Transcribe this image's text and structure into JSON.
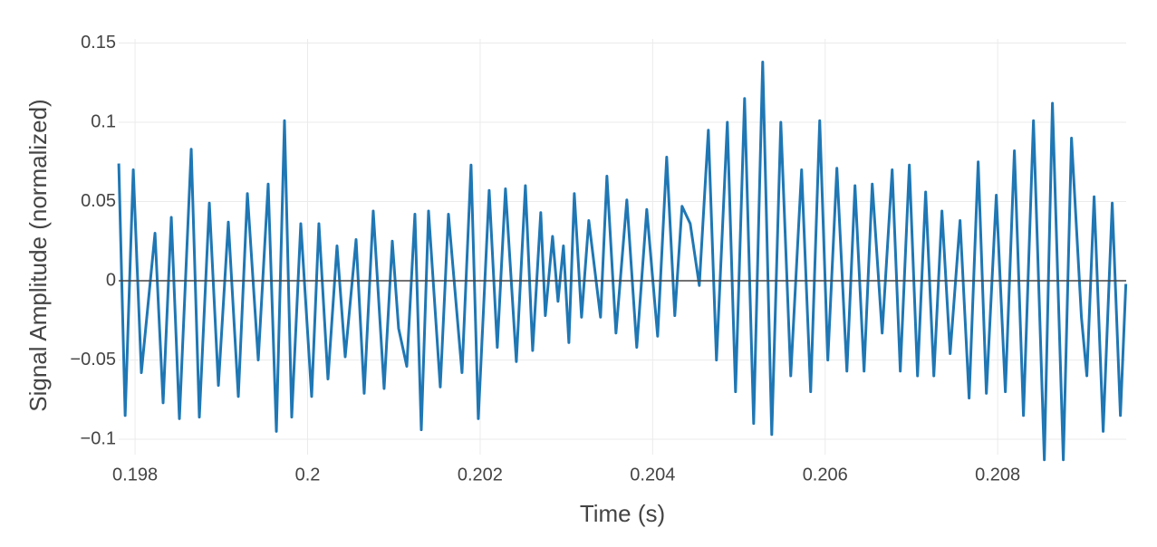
{
  "chart_data": {
    "type": "line",
    "x_label": "Time (s)",
    "y_label": "Signal Amplitude (normalized)",
    "xlim": [
      0.19781,
      0.20949
    ],
    "ylim": [
      -0.1097,
      0.1526
    ],
    "xticks": [
      0.198,
      0.2,
      0.202,
      0.204,
      0.206,
      0.208
    ],
    "yticks": [
      {
        "value": -0.1,
        "label": "−0.1"
      },
      {
        "value": -0.05,
        "label": "−0.05"
      },
      0,
      0.05,
      0.1,
      0.15
    ],
    "grid": true,
    "zeroline": true,
    "series": [
      {
        "color": "#1f77b4",
        "x": [
          0.197811,
          0.197885,
          0.197979,
          0.198073,
          0.198231,
          0.198325,
          0.19842,
          0.198514,
          0.198651,
          0.198745,
          0.198861,
          0.198966,
          0.199081,
          0.199197,
          0.199302,
          0.199428,
          0.199543,
          0.199638,
          0.199732,
          0.199816,
          0.199921,
          0.200047,
          0.200131,
          0.200236,
          0.200341,
          0.200436,
          0.200562,
          0.200656,
          0.200761,
          0.200887,
          0.200982,
          0.201055,
          0.20115,
          0.201244,
          0.201318,
          0.201402,
          0.201538,
          0.201633,
          0.20179,
          0.201895,
          0.201979,
          0.202105,
          0.202199,
          0.202294,
          0.20242,
          0.202525,
          0.202609,
          0.202703,
          0.202756,
          0.20284,
          0.202903,
          0.202966,
          0.203029,
          0.203092,
          0.203176,
          0.20326,
          0.203396,
          0.20347,
          0.203575,
          0.203701,
          0.203816,
          0.203932,
          0.204058,
          0.204163,
          0.204257,
          0.204341,
          0.204436,
          0.204541,
          0.204646,
          0.20474,
          0.204866,
          0.204961,
          0.205066,
          0.205171,
          0.205276,
          0.205381,
          0.205486,
          0.205601,
          0.205727,
          0.205832,
          0.205937,
          0.206031,
          0.206136,
          0.206252,
          0.206346,
          0.206451,
          0.206546,
          0.206661,
          0.206777,
          0.206871,
          0.206976,
          0.207071,
          0.207165,
          0.20726,
          0.207354,
          0.207449,
          0.207564,
          0.207669,
          0.207774,
          0.207869,
          0.207984,
          0.208089,
          0.208194,
          0.208299,
          0.208415,
          0.208541,
          0.208635,
          0.208761,
          0.208856,
          0.208971,
          0.209034,
          0.209118,
          0.209223,
          0.209328,
          0.209423,
          0.209486
        ],
        "values": [
          0.074,
          -0.085,
          0.07,
          -0.058,
          0.03,
          -0.077,
          0.04,
          -0.087,
          0.083,
          -0.086,
          0.049,
          -0.066,
          0.037,
          -0.073,
          0.055,
          -0.05,
          0.061,
          -0.095,
          0.101,
          -0.086,
          0.036,
          -0.073,
          0.036,
          -0.062,
          0.022,
          -0.048,
          0.026,
          -0.071,
          0.044,
          -0.068,
          0.025,
          -0.03,
          -0.054,
          0.042,
          -0.094,
          0.044,
          -0.067,
          0.042,
          -0.058,
          0.073,
          -0.087,
          0.057,
          -0.042,
          0.058,
          -0.051,
          0.06,
          -0.044,
          0.043,
          -0.022,
          0.028,
          -0.013,
          0.022,
          -0.039,
          0.055,
          -0.023,
          0.038,
          -0.023,
          0.066,
          -0.033,
          0.051,
          -0.042,
          0.045,
          -0.035,
          0.078,
          -0.022,
          0.047,
          0.036,
          -0.003,
          0.095,
          -0.05,
          0.1,
          -0.07,
          0.115,
          -0.09,
          0.138,
          -0.097,
          0.1,
          -0.06,
          0.07,
          -0.07,
          0.101,
          -0.05,
          0.071,
          -0.057,
          0.06,
          -0.057,
          0.061,
          -0.033,
          0.07,
          -0.057,
          0.073,
          -0.06,
          0.056,
          -0.06,
          0.044,
          -0.046,
          0.038,
          -0.074,
          0.075,
          -0.071,
          0.054,
          -0.07,
          0.082,
          -0.085,
          0.101,
          -0.113,
          0.112,
          -0.113,
          0.09,
          -0.023,
          -0.06,
          0.053,
          -0.095,
          0.049,
          -0.085,
          -0.002
        ]
      }
    ]
  }
}
